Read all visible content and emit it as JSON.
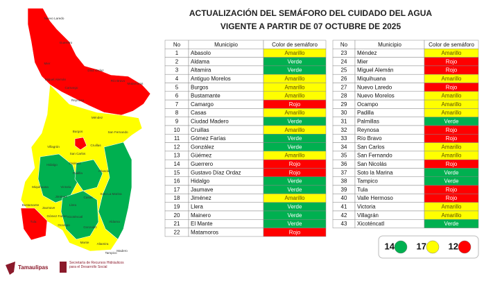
{
  "header": {
    "title": "ACTUALIZACIÓN DEL SEMÁFORO DEL CUIDADO DEL AGUA",
    "subtitle": "VIGENTE A PARTIR DE 07 OCTUBRE DE 2025"
  },
  "status_colors": {
    "Amarillo": "#ffff00",
    "Verde": "#00b050",
    "Rojo": "#ff0000"
  },
  "tables": [
    {
      "headers": [
        "No",
        "Municipio",
        "Color de semáforo"
      ],
      "rows": [
        [
          1,
          "Abasolo",
          "Amarillo"
        ],
        [
          2,
          "Aldama",
          "Verde"
        ],
        [
          3,
          "Altamira",
          "Verde"
        ],
        [
          4,
          "Antiguo Morelos",
          "Amarillo"
        ],
        [
          5,
          "Burgos",
          "Amarillo"
        ],
        [
          6,
          "Bustamante",
          "Amarillo"
        ],
        [
          7,
          "Camargo",
          "Rojo"
        ],
        [
          8,
          "Casas",
          "Amarillo"
        ],
        [
          9,
          "Ciudad Madero",
          "Verde"
        ],
        [
          10,
          "Cruillas",
          "Amarillo"
        ],
        [
          11,
          "Gómez Farías",
          "Verde"
        ],
        [
          12,
          "González",
          "Verde"
        ],
        [
          13,
          "Güémez",
          "Amarillo"
        ],
        [
          14,
          "Guerrero",
          "Rojo"
        ],
        [
          15,
          "Gustavo Díaz Ordaz",
          "Rojo"
        ],
        [
          16,
          "Hidalgo",
          "Verde"
        ],
        [
          17,
          "Jaumave",
          "Verde"
        ],
        [
          18,
          "Jiménez",
          "Amarillo"
        ],
        [
          19,
          "Llera",
          "Verde"
        ],
        [
          20,
          "Mainero",
          "Verde"
        ],
        [
          21,
          "El Mante",
          "Verde"
        ],
        [
          22,
          "Matamoros",
          "Rojo"
        ]
      ]
    },
    {
      "headers": [
        "No",
        "Municipio",
        "Color de semáforo"
      ],
      "rows": [
        [
          23,
          "Méndez",
          "Amarillo"
        ],
        [
          24,
          "Mier",
          "Rojo"
        ],
        [
          25,
          "Miguel Alemán",
          "Rojo"
        ],
        [
          26,
          "Miquihuana",
          "Amarillo"
        ],
        [
          27,
          "Nuevo Laredo",
          "Rojo"
        ],
        [
          28,
          "Nuevo Morelos",
          "Amarillo"
        ],
        [
          29,
          "Ocampo",
          "Amarillo"
        ],
        [
          30,
          "Padilla",
          "Amarillo"
        ],
        [
          31,
          "Palmillas",
          "Verde"
        ],
        [
          32,
          "Reynosa",
          "Rojo"
        ],
        [
          33,
          "Río Bravo",
          "Rojo"
        ],
        [
          34,
          "San Carlos",
          "Amarillo"
        ],
        [
          35,
          "San Fernando",
          "Amarillo"
        ],
        [
          36,
          "San Nicolás",
          "Rojo"
        ],
        [
          37,
          "Soto la Marina",
          "Verde"
        ],
        [
          38,
          "Tampico",
          "Verde"
        ],
        [
          39,
          "Tula",
          "Rojo"
        ],
        [
          40,
          "Valle Hermoso",
          "Rojo"
        ],
        [
          41,
          "Victoria",
          "Amarillo"
        ],
        [
          42,
          "Villagrán",
          "Amarillo"
        ],
        [
          43,
          "Xicoténcatl",
          "Verde"
        ]
      ]
    }
  ],
  "legend": [
    {
      "count": 14,
      "color": "#00b050"
    },
    {
      "count": 17,
      "color": "#ffff00"
    },
    {
      "count": 12,
      "color": "#ff0000"
    }
  ],
  "map_labels": [
    "Nuevo Laredo",
    "Guerrero",
    "Mier",
    "Díaz Ordaz",
    "Miguel Alemán",
    "Camargo",
    "Río Bravo",
    "Matamoros",
    "Reynosa",
    "Méndez",
    "Burgos",
    "San Fernando",
    "Cruillas",
    "Villagrán",
    "San Carlos",
    "Hidalgo",
    "Padilla",
    "Abasolo",
    "Victoria",
    "Soto La Marina",
    "Miquihuana",
    "Jiménez",
    "Güémez",
    "Casas",
    "Bustamante",
    "Llera",
    "Jaumave",
    "Tula",
    "Ocampo",
    "Xicoténcatl",
    "Gómez Farías",
    "Aldama",
    "Gonzalez",
    "Mante",
    "Altamira",
    "Tampico",
    "Madero"
  ],
  "footer": {
    "logo": "Tamaulipas",
    "agency": "Secretaría de Recursos Hidráulicos para el Desarrollo Social"
  }
}
